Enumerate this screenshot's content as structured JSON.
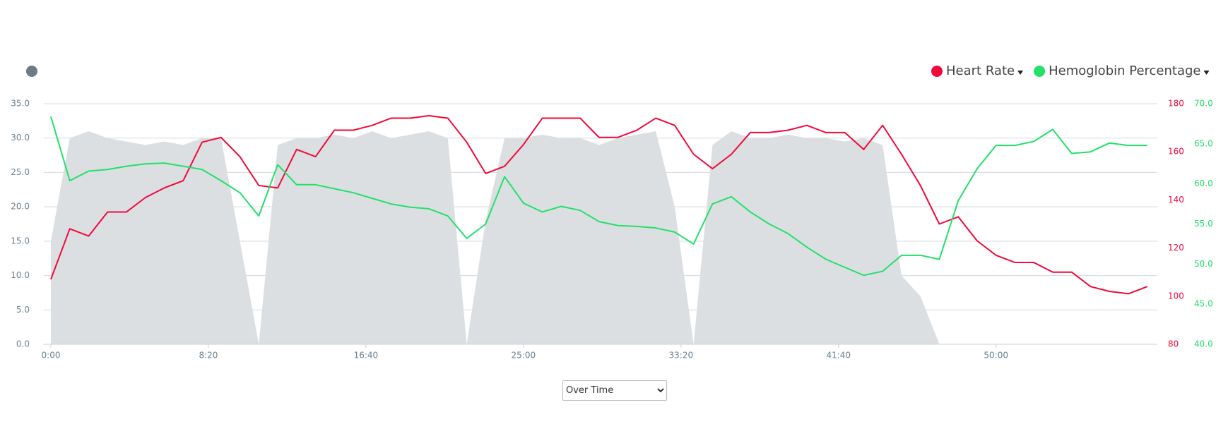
{
  "chart_data": {
    "type": "line",
    "x": [
      0,
      60,
      120,
      180,
      240,
      300,
      360,
      420,
      480,
      540,
      600,
      660,
      720,
      780,
      840,
      900,
      960,
      1020,
      1080,
      1140,
      1200,
      1260,
      1320,
      1380,
      1440,
      1500,
      1560,
      1620,
      1680,
      1740,
      1800,
      1860,
      1920,
      1980,
      2040,
      2100,
      2160,
      2220,
      2280,
      2340,
      2400,
      2460,
      2520,
      2580,
      2640,
      2700,
      2760,
      2820,
      2880,
      2940,
      3000,
      3060,
      3120,
      3180,
      3240,
      3300,
      3360,
      3420,
      3480
    ],
    "xlim": [
      0,
      3512
    ],
    "xticks": [
      {
        "value": 0,
        "label": "0:00"
      },
      {
        "value": 500,
        "label": "8:20"
      },
      {
        "value": 1000,
        "label": "16:40"
      },
      {
        "value": 1500,
        "label": "25:00"
      },
      {
        "value": 2000,
        "label": "33:20"
      },
      {
        "value": 2500,
        "label": "41:40"
      },
      {
        "value": 3000,
        "label": "50:00"
      }
    ],
    "ylim": [
      0,
      35
    ],
    "yticks": [
      {
        "value": 0,
        "label": "0.0"
      },
      {
        "value": 5,
        "label": "5.0"
      },
      {
        "value": 10,
        "label": "10.0"
      },
      {
        "value": 15,
        "label": "15.0"
      },
      {
        "value": 20,
        "label": "20.0"
      },
      {
        "value": 25,
        "label": "25.0"
      },
      {
        "value": 30,
        "label": "30.0"
      },
      {
        "value": 35,
        "label": "35.0"
      }
    ],
    "y2lim": [
      80,
      180
    ],
    "y2ticks": [
      80,
      100,
      120,
      140,
      160,
      180
    ],
    "y3lim": [
      40,
      70
    ],
    "y3ticks": [
      {
        "value": 40,
        "label": "40.0"
      },
      {
        "value": 45,
        "label": "45.0"
      },
      {
        "value": 50,
        "label": "50.0"
      },
      {
        "value": 55,
        "label": "55.0"
      },
      {
        "value": 60,
        "label": "60.0"
      },
      {
        "value": 65,
        "label": "65.0"
      },
      {
        "value": 70,
        "label": "70.0"
      }
    ],
    "grid": true,
    "legend": "top-right",
    "series": [
      {
        "type": "area",
        "axis": "y",
        "color": "#dcdfe2",
        "values": [
          15,
          30,
          31,
          30,
          29.5,
          29,
          29.5,
          29,
          30,
          30,
          15,
          0,
          29,
          30,
          30,
          30.5,
          30,
          31,
          30,
          30.5,
          31,
          30,
          0,
          18,
          30,
          30,
          30.5,
          30,
          30,
          29,
          30,
          30.5,
          31,
          20,
          0,
          29,
          31,
          30,
          30,
          30.5,
          30,
          30,
          29.5,
          30,
          29,
          10,
          7,
          0,
          0,
          0,
          0,
          0,
          0,
          0,
          0,
          0,
          0,
          0,
          0
        ]
      },
      {
        "name": "Heart Rate",
        "type": "line",
        "axis": "y2",
        "color": "#f0093a",
        "values": [
          107,
          128,
          125,
          135,
          135,
          141,
          145,
          148,
          164,
          166,
          158,
          146,
          145,
          161,
          158,
          169,
          169,
          171,
          174,
          174,
          175,
          174,
          164,
          151,
          154,
          163,
          174,
          174,
          174,
          166,
          166,
          169,
          174,
          171,
          159,
          153,
          159,
          168,
          168,
          169,
          171,
          168,
          168,
          161,
          171,
          159,
          146,
          130,
          133,
          123,
          117,
          114,
          114,
          110,
          110,
          104,
          102,
          101,
          104
        ]
      },
      {
        "name": "Hemoglobin Percentage",
        "type": "line",
        "axis": "y3",
        "color": "#22e06a",
        "values": [
          68.4,
          60.4,
          61.6,
          61.8,
          62.2,
          62.5,
          62.6,
          62.2,
          61.8,
          60.4,
          58.9,
          56.0,
          62.4,
          59.9,
          59.9,
          59.4,
          58.9,
          58.2,
          57.5,
          57.1,
          56.9,
          56.0,
          53.2,
          55.0,
          60.9,
          57.6,
          56.5,
          57.2,
          56.7,
          55.3,
          54.8,
          54.7,
          54.5,
          54.0,
          52.5,
          57.5,
          58.4,
          56.5,
          55.0,
          53.8,
          52.1,
          50.6,
          49.6,
          48.6,
          49.1,
          51.1,
          51.1,
          50.6,
          57.9,
          61.9,
          64.8,
          64.8,
          65.3,
          66.8,
          63.8,
          64.0,
          65.1,
          64.8,
          64.8
        ]
      }
    ]
  },
  "controls": {
    "view_select": "Over Time"
  }
}
